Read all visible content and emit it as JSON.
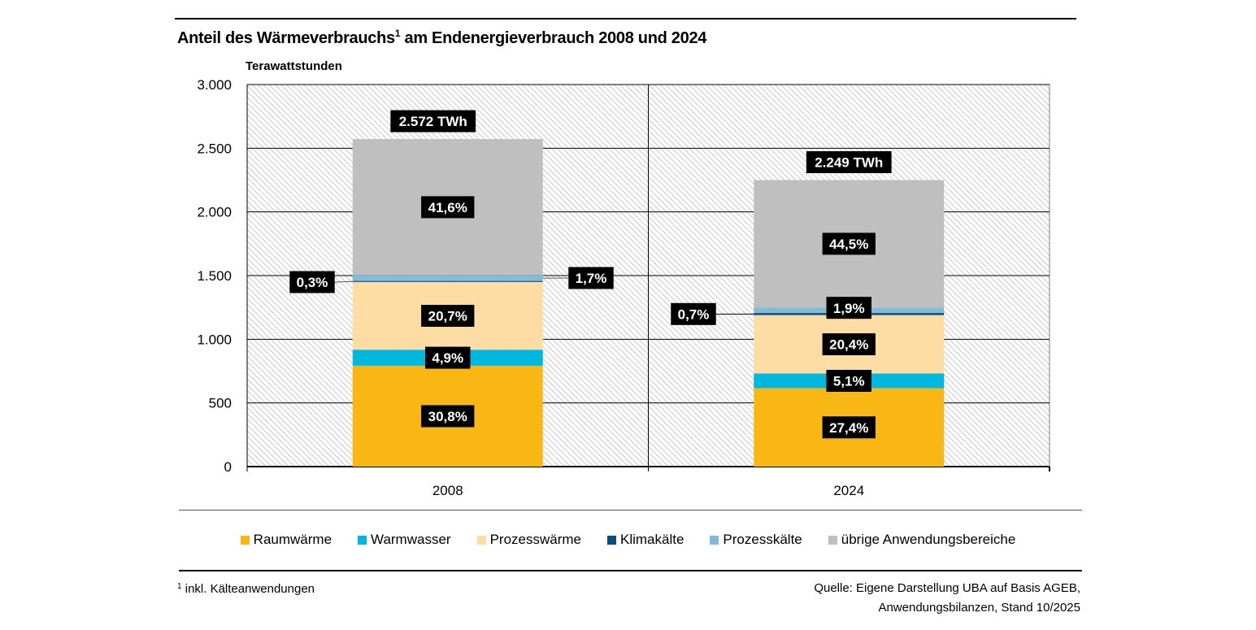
{
  "header": {
    "title": "Anteil des Wärmeverbrauchs",
    "title_sup": "1",
    "title_rest": " am Endenergieverbrauch 2008 und 2024",
    "unit_label": "Terawattstunden"
  },
  "chart_data": {
    "type": "bar",
    "stacked": true,
    "title": "Anteil des Wärmeverbrauchs¹ am Endenergieverbrauch 2008 und 2024",
    "xlabel": "",
    "ylabel": "Terawattstunden",
    "ylim": [
      0,
      3000
    ],
    "yticks": [
      0,
      500,
      1000,
      1500,
      2000,
      2500,
      3000
    ],
    "ytick_labels": [
      "0",
      "500",
      "1.000",
      "1.500",
      "2.000",
      "2.500",
      "3.000"
    ],
    "grid": true,
    "legend_position": "bottom",
    "categories": [
      "2008",
      "2024"
    ],
    "totals": [
      2572,
      2249
    ],
    "total_labels": [
      "2.572 TWh",
      "2.249 TWh"
    ],
    "series": [
      {
        "name": "Raumwärme",
        "color": "#F9B715",
        "values": [
          792,
          616
        ],
        "share_labels": [
          "30,8%",
          "27,4%"
        ]
      },
      {
        "name": "Warmwasser",
        "color": "#00B8DE",
        "values": [
          126,
          115
        ],
        "share_labels": [
          "4,9%",
          "5,1%"
        ]
      },
      {
        "name": "Prozesswärme",
        "color": "#FDDDA4",
        "values": [
          532,
          459
        ],
        "share_labels": [
          "20,7%",
          "20,4%"
        ]
      },
      {
        "name": "Klimakälte",
        "color": "#0A4B80",
        "values": [
          8,
          16
        ],
        "share_labels": [
          "0,3%",
          "0,7%"
        ]
      },
      {
        "name": "Prozesskälte",
        "color": "#7FBCD9",
        "values": [
          44,
          43
        ],
        "share_labels": [
          "1,7%",
          "1,9%"
        ]
      },
      {
        "name": "übrige Anwendungsbereiche",
        "color": "#BFBFBF",
        "values": [
          1070,
          1001
        ],
        "share_labels": [
          "41,6%",
          "44,5%"
        ]
      }
    ]
  },
  "footer": {
    "footnote_sup": "1",
    "footnote": " inkl. Kälteanwendungen",
    "source_line1": "Quelle: Eigene Darstellung UBA auf Basis AGEB,",
    "source_line2": "Anwendungsbilanzen, Stand 10/2025"
  }
}
